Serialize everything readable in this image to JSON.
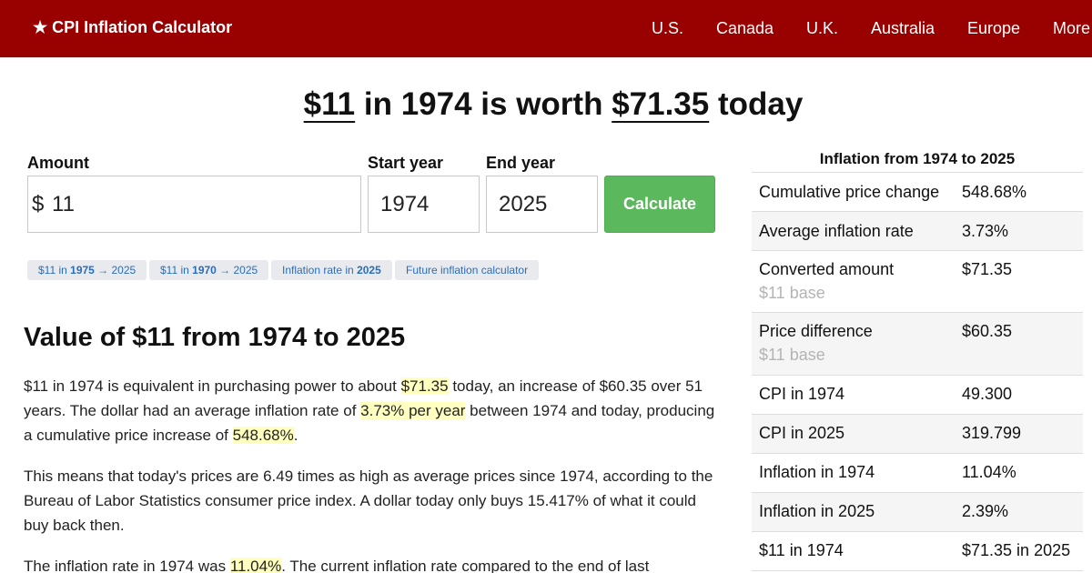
{
  "nav": {
    "brand": "★ CPI Inflation Calculator",
    "links": [
      "U.S.",
      "Canada",
      "U.K.",
      "Australia",
      "Europe",
      "More"
    ]
  },
  "headline": {
    "amount": "$11",
    "mid1": " in 1974 is worth ",
    "result": "$71.35",
    "tail": " today"
  },
  "form": {
    "amount_label": "Amount",
    "currency": "$",
    "amount_value": "11",
    "start_label": "Start year",
    "start_value": "1974",
    "end_label": "End year",
    "end_value": "2025",
    "calculate_label": "Calculate"
  },
  "chips": [
    {
      "pre": "$11 in ",
      "bold": "1975",
      "post": " → 2025"
    },
    {
      "pre": "$11 in ",
      "bold": "1970",
      "post": " → 2025"
    },
    {
      "pre": "Inflation rate in ",
      "bold": "2025",
      "post": ""
    },
    {
      "pre": "Future inflation calculator",
      "bold": "",
      "post": ""
    }
  ],
  "article": {
    "heading": "Value of $11 from 1974 to 2025",
    "p1": {
      "a": "$11 in 1974 is equivalent in purchasing power to about ",
      "h1": "$71.35",
      "b": " today, an increase of $60.35 over 51 years. The dollar had an average inflation rate of ",
      "h2": "3.73% per year",
      "c": " between 1974 and today, producing a cumulative price increase of ",
      "h3": "548.68%",
      "d": "."
    },
    "p2": "This means that today's prices are 6.49 times as high as average prices since 1974, according to the Bureau of Labor Statistics consumer price index. A dollar today only buys 15.417% of what it could buy back then.",
    "p3": {
      "a": "The inflation rate in 1974 was ",
      "h1": "11.04%",
      "b": ". The current inflation rate compared to the end of last"
    }
  },
  "sidebar": {
    "title": "Inflation from 1974 to 2025",
    "rows": [
      {
        "key": "Cumulative price change",
        "value": "548.68%",
        "sub": ""
      },
      {
        "key": "Average inflation rate",
        "value": "3.73%",
        "sub": ""
      },
      {
        "key": "Converted amount",
        "value": "$71.35",
        "sub": "$11 base"
      },
      {
        "key": "Price difference",
        "value": "$60.35",
        "sub": "$11 base"
      },
      {
        "key": "CPI in 1974",
        "value": "49.300",
        "sub": ""
      },
      {
        "key": "CPI in 2025",
        "value": "319.799",
        "sub": ""
      },
      {
        "key": "Inflation in 1974",
        "value": "11.04%",
        "sub": ""
      },
      {
        "key": "Inflation in 2025",
        "value": "2.39%",
        "sub": ""
      },
      {
        "key": "$11 in 1974",
        "value": "$71.35 in 2025",
        "sub": ""
      }
    ]
  },
  "colors": {
    "nav_bg": "#990000",
    "button_bg": "#5cb85c",
    "link": "#2a6ebb",
    "highlight": "#ffffc0"
  }
}
